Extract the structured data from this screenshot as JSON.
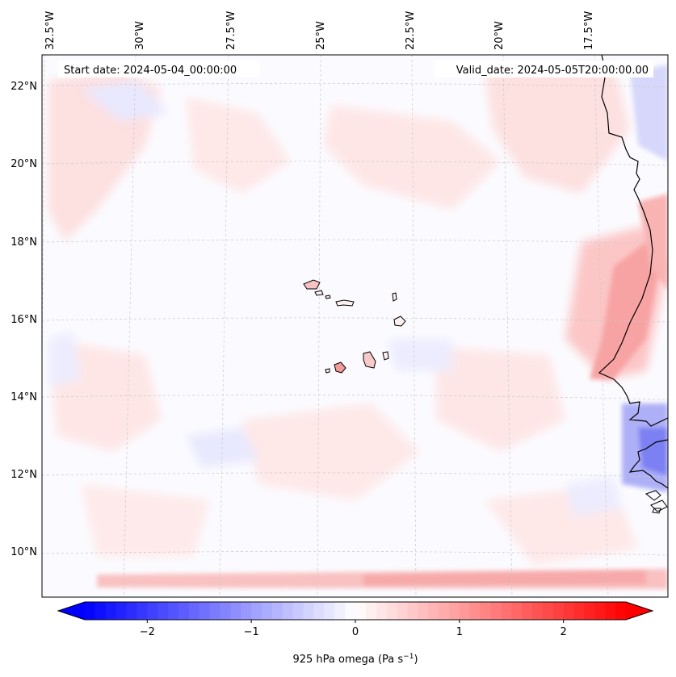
{
  "map": {
    "variable": "925 hPa omega",
    "colorbar_label_main": "925 hPa omega (Pa s",
    "colorbar_label_sup": "−1",
    "colorbar_label_end": ")",
    "start_date": "Start date: 2024-05-04_00:00:00",
    "valid_date": "Valid_date: 2024-05-05T20:00:00.00",
    "colormap": "bwr",
    "colors": {
      "negative": "#0000ff",
      "zero": "#ffffff",
      "positive": "#ff0000",
      "land_outline": "#000000",
      "grid": "#bdbdbd"
    },
    "longitude_labels": [
      "32.5°W",
      "30°W",
      "27.5°W",
      "25°W",
      "22.5°W",
      "20°W",
      "17.5°W"
    ],
    "latitude_labels": [
      "22°N",
      "20°N",
      "18°N",
      "16°N",
      "14°N",
      "12°N",
      "10°N"
    ],
    "colorbar_ticks": [
      "−2",
      "−1",
      "0",
      "1",
      "2"
    ],
    "colorbar_range": [
      -2.6,
      2.6
    ],
    "colorbar_tick_values": [
      -2,
      -1,
      0,
      1,
      2
    ],
    "colorbar_levels": 52
  }
}
